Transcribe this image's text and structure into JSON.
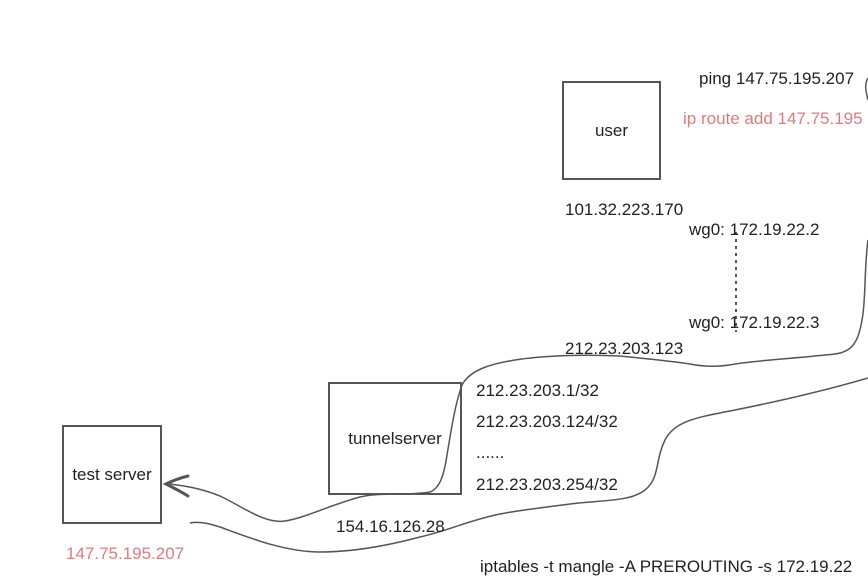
{
  "nodes": {
    "user": "user",
    "tunnelserver": "tunnelserver",
    "test_server": "test server"
  },
  "labels": {
    "user_ip": "101.32.223.170",
    "ping_cmd": "ping 147.75.195.207",
    "ip_route_cmd": "ip route add 147.75.195",
    "wg0_top": "wg0: 172.19.22.2",
    "wg0_bottom": "wg0: 172.19.22.3",
    "tunnel_public_ip": "212.23.203.123",
    "route_1": "212.23.203.1/32",
    "route_2": "212.23.203.124/32",
    "route_ellipsis": "......",
    "route_3": "212.23.203.254/32",
    "tunnel_ip": "154.16.126.28",
    "test_server_ip": "147.75.195.207",
    "iptables_cmd": "iptables -t mangle -A PREROUTING -s 172.19.22"
  },
  "colors": {
    "highlight": "#e07b7b",
    "stroke": "#555555"
  }
}
